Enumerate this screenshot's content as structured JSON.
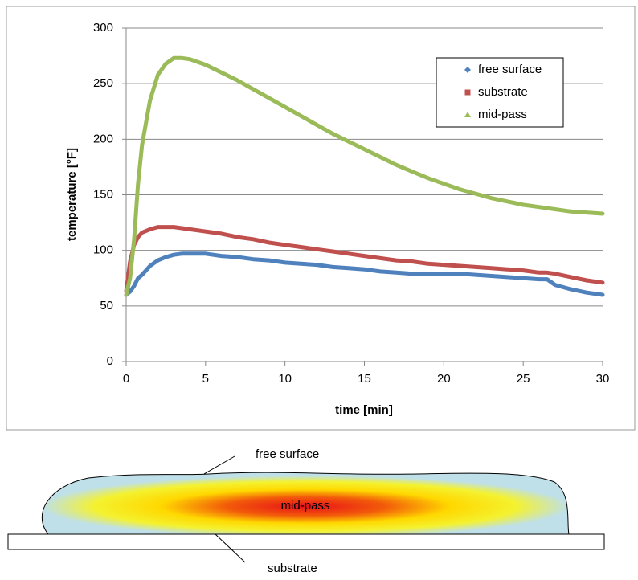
{
  "chart_data": {
    "type": "line",
    "xlabel": "time [min]",
    "ylabel": "temperature [°F]",
    "x": [
      0,
      0.25,
      0.5,
      0.75,
      1,
      1.5,
      2,
      2.5,
      3,
      3.5,
      4,
      5,
      6,
      7,
      8,
      9,
      10,
      11,
      12,
      13,
      14,
      15,
      16,
      17,
      18,
      19,
      20,
      21,
      22,
      23,
      24,
      25,
      26,
      26.5,
      27,
      28,
      29,
      30
    ],
    "series": [
      {
        "name": "free surface",
        "color": "#4f81bd",
        "marker": "diamond",
        "values": [
          60,
          63,
          68,
          75,
          78,
          86,
          91,
          94,
          96,
          97,
          97,
          97,
          95,
          94,
          92,
          91,
          89,
          88,
          87,
          85,
          84,
          83,
          81,
          80,
          79,
          79,
          79,
          79,
          78,
          77,
          76,
          75,
          74,
          74,
          69,
          65,
          62,
          60
        ]
      },
      {
        "name": "substrate",
        "color": "#c0504d",
        "marker": "square",
        "values": [
          63,
          90,
          105,
          112,
          116,
          119,
          121,
          121,
          121,
          120,
          119,
          117,
          115,
          112,
          110,
          107,
          105,
          103,
          101,
          99,
          97,
          95,
          93,
          91,
          90,
          88,
          87,
          86,
          85,
          84,
          83,
          82,
          80,
          80,
          79,
          76,
          73,
          71
        ]
      },
      {
        "name": "mid-pass",
        "color": "#9bbb59",
        "marker": "triangle",
        "values": [
          60,
          75,
          110,
          160,
          195,
          235,
          258,
          268,
          273,
          273,
          272,
          267,
          260,
          253,
          245,
          237,
          229,
          221,
          213,
          205,
          198,
          191,
          184,
          177,
          171,
          165,
          160,
          155,
          151,
          147,
          144,
          141,
          139,
          138,
          137,
          135,
          134,
          133
        ]
      }
    ],
    "xlim": [
      0,
      30
    ],
    "xticks": [
      0,
      5,
      10,
      15,
      20,
      25,
      30
    ],
    "ylim": [
      0,
      300
    ],
    "yticks": [
      0,
      50,
      100,
      150,
      200,
      250,
      300
    ],
    "grid": true,
    "legend": "upper right"
  },
  "diagram": {
    "labels": [
      "free surface",
      "mid-pass",
      "substrate"
    ]
  }
}
